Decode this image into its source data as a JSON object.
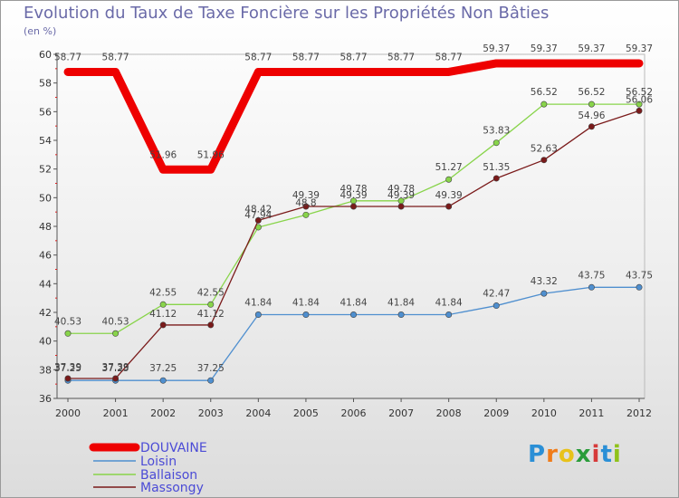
{
  "chart_data": {
    "type": "line",
    "title": "Evolution du Taux de Taxe Foncière sur les Propriétés Non Bâties",
    "ylabel": "(en %)",
    "x": [
      "2000",
      "2001",
      "2002",
      "2003",
      "2004",
      "2005",
      "2006",
      "2007",
      "2008",
      "2009",
      "2010",
      "2011",
      "2012"
    ],
    "ylim": [
      36,
      60
    ],
    "yticks": [
      36,
      38,
      40,
      42,
      44,
      46,
      48,
      50,
      52,
      54,
      56,
      58,
      60
    ],
    "series": [
      {
        "name": "DOUVAINE",
        "color": "#ee0000",
        "values": [
          58.77,
          58.77,
          51.96,
          51.96,
          58.77,
          58.77,
          58.77,
          58.77,
          58.77,
          59.37,
          59.37,
          59.37,
          59.37
        ]
      },
      {
        "name": "Loisin",
        "color": "#4f8fcf",
        "values": [
          37.25,
          37.25,
          37.25,
          37.25,
          41.84,
          41.84,
          41.84,
          41.84,
          41.84,
          42.47,
          43.32,
          43.75,
          43.75
        ]
      },
      {
        "name": "Ballaison",
        "color": "#88d44a",
        "values": [
          40.53,
          40.53,
          42.55,
          42.55,
          47.94,
          48.8,
          49.78,
          49.78,
          51.27,
          53.83,
          56.52,
          56.52,
          56.52
        ]
      },
      {
        "name": "Massongy",
        "color": "#7a1a1a",
        "values": [
          37.39,
          37.39,
          41.12,
          41.12,
          48.42,
          49.39,
          49.39,
          49.39,
          49.39,
          51.35,
          52.63,
          54.96,
          56.06
        ]
      }
    ],
    "data_labels": [
      [
        "58.77",
        "58.77",
        "51.96",
        "51.96",
        "58.77",
        "58.77",
        "58.77",
        "58.77",
        "58.77",
        "59.37",
        "59.37",
        "59.37",
        "59.37"
      ],
      [
        "37.25",
        "37.25",
        "37.25",
        "37.25",
        "41.84",
        "41.84",
        "41.84",
        "41.84",
        "41.84",
        "42.47",
        "43.32",
        "43.75",
        "43.75"
      ],
      [
        "40.53",
        "40.53",
        "42.55",
        "42.55",
        "47.94",
        "48.8",
        "49.78",
        "49.78",
        "51.27",
        "53.83",
        "56.52",
        "56.52",
        "56.52"
      ],
      [
        "37.39",
        "37.39",
        "41.12",
        "41.12",
        "48.42",
        "49.39",
        "49.39",
        "49.39",
        "49.39",
        "51.35",
        "52.63",
        "54.96",
        "56.06"
      ]
    ]
  },
  "brand": {
    "letters": [
      "P",
      "r",
      "o",
      "x",
      "i",
      "t",
      "i"
    ],
    "colors": [
      "#2a8fd6",
      "#f07c1a",
      "#e8c21a",
      "#2a9c3a",
      "#d63a3a",
      "#2a8fd6",
      "#8fc21a"
    ]
  }
}
